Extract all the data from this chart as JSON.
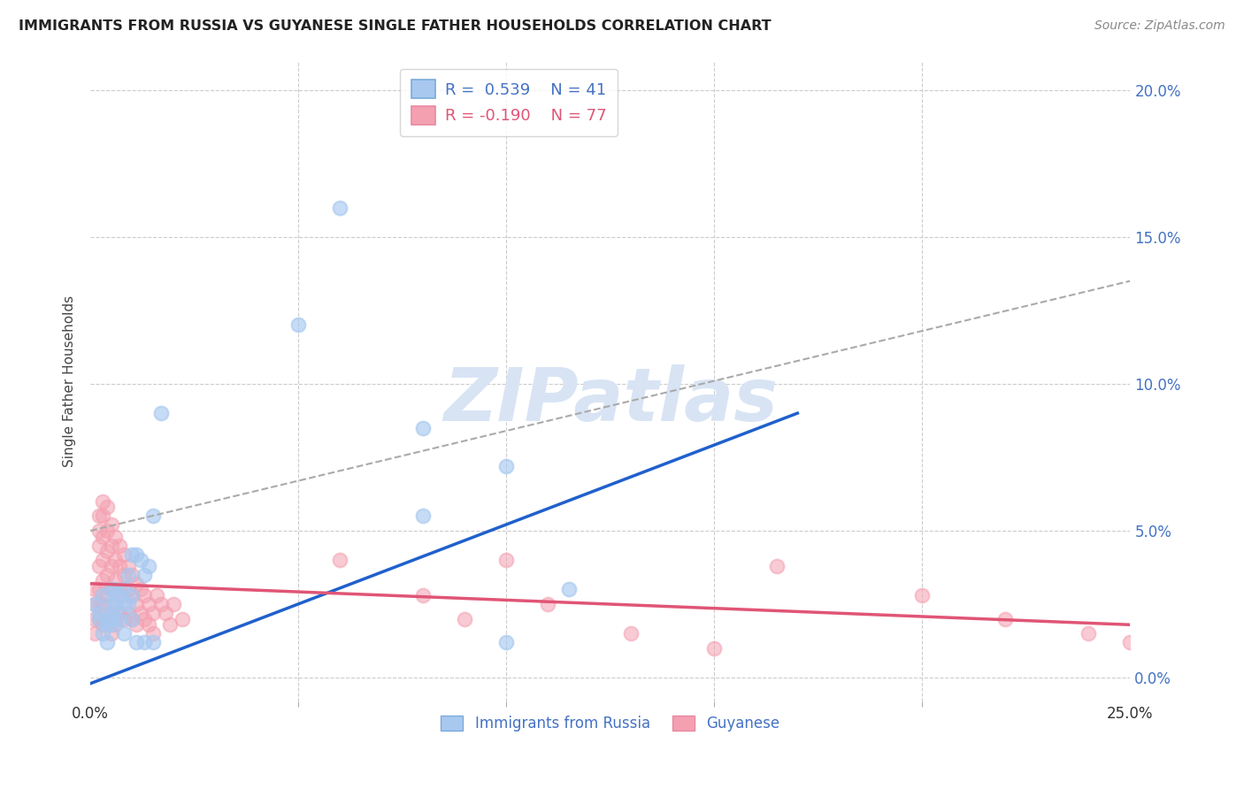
{
  "title": "IMMIGRANTS FROM RUSSIA VS GUYANESE SINGLE FATHER HOUSEHOLDS CORRELATION CHART",
  "source": "Source: ZipAtlas.com",
  "ylabel": "Single Father Households",
  "legend_blue_label": "Immigrants from Russia",
  "legend_pink_label": "Guyanese",
  "scatter_color_blue": "#A8C8F0",
  "scatter_color_pink": "#F4A0B0",
  "line_color_blue": "#2060CC",
  "line_color_pink": "#E05575",
  "line_color_gray": "#AAAAAA",
  "background_color": "#FFFFFF",
  "watermark_text": "ZIPatlas",
  "watermark_color": "#D8E4F4",
  "blue_points": [
    [
      0.001,
      0.025
    ],
    [
      0.002,
      0.02
    ],
    [
      0.002,
      0.022
    ],
    [
      0.003,
      0.028
    ],
    [
      0.003,
      0.015
    ],
    [
      0.004,
      0.018
    ],
    [
      0.004,
      0.02
    ],
    [
      0.004,
      0.012
    ],
    [
      0.005,
      0.022
    ],
    [
      0.005,
      0.018
    ],
    [
      0.005,
      0.025
    ],
    [
      0.005,
      0.03
    ],
    [
      0.006,
      0.02
    ],
    [
      0.006,
      0.025
    ],
    [
      0.006,
      0.03
    ],
    [
      0.007,
      0.028
    ],
    [
      0.007,
      0.02
    ],
    [
      0.008,
      0.03
    ],
    [
      0.008,
      0.025
    ],
    [
      0.008,
      0.015
    ],
    [
      0.009,
      0.035
    ],
    [
      0.009,
      0.025
    ],
    [
      0.01,
      0.042
    ],
    [
      0.01,
      0.028
    ],
    [
      0.01,
      0.02
    ],
    [
      0.011,
      0.042
    ],
    [
      0.011,
      0.012
    ],
    [
      0.012,
      0.04
    ],
    [
      0.013,
      0.012
    ],
    [
      0.013,
      0.035
    ],
    [
      0.014,
      0.038
    ],
    [
      0.015,
      0.055
    ],
    [
      0.015,
      0.012
    ],
    [
      0.017,
      0.09
    ],
    [
      0.05,
      0.12
    ],
    [
      0.06,
      0.16
    ],
    [
      0.08,
      0.085
    ],
    [
      0.08,
      0.055
    ],
    [
      0.1,
      0.072
    ],
    [
      0.1,
      0.012
    ],
    [
      0.115,
      0.03
    ]
  ],
  "pink_points": [
    [
      0.001,
      0.03
    ],
    [
      0.001,
      0.025
    ],
    [
      0.001,
      0.02
    ],
    [
      0.001,
      0.015
    ],
    [
      0.002,
      0.055
    ],
    [
      0.002,
      0.05
    ],
    [
      0.002,
      0.045
    ],
    [
      0.002,
      0.038
    ],
    [
      0.002,
      0.03
    ],
    [
      0.002,
      0.025
    ],
    [
      0.002,
      0.02
    ],
    [
      0.003,
      0.06
    ],
    [
      0.003,
      0.055
    ],
    [
      0.003,
      0.048
    ],
    [
      0.003,
      0.04
    ],
    [
      0.003,
      0.033
    ],
    [
      0.003,
      0.025
    ],
    [
      0.003,
      0.018
    ],
    [
      0.004,
      0.058
    ],
    [
      0.004,
      0.05
    ],
    [
      0.004,
      0.043
    ],
    [
      0.004,
      0.035
    ],
    [
      0.004,
      0.028
    ],
    [
      0.004,
      0.02
    ],
    [
      0.005,
      0.052
    ],
    [
      0.005,
      0.045
    ],
    [
      0.005,
      0.038
    ],
    [
      0.005,
      0.03
    ],
    [
      0.005,
      0.022
    ],
    [
      0.005,
      0.015
    ],
    [
      0.006,
      0.048
    ],
    [
      0.006,
      0.04
    ],
    [
      0.006,
      0.033
    ],
    [
      0.006,
      0.025
    ],
    [
      0.006,
      0.018
    ],
    [
      0.007,
      0.045
    ],
    [
      0.007,
      0.038
    ],
    [
      0.007,
      0.03
    ],
    [
      0.007,
      0.022
    ],
    [
      0.008,
      0.042
    ],
    [
      0.008,
      0.035
    ],
    [
      0.008,
      0.028
    ],
    [
      0.008,
      0.02
    ],
    [
      0.009,
      0.038
    ],
    [
      0.009,
      0.03
    ],
    [
      0.009,
      0.022
    ],
    [
      0.01,
      0.035
    ],
    [
      0.01,
      0.028
    ],
    [
      0.01,
      0.02
    ],
    [
      0.011,
      0.032
    ],
    [
      0.011,
      0.025
    ],
    [
      0.011,
      0.018
    ],
    [
      0.012,
      0.03
    ],
    [
      0.012,
      0.022
    ],
    [
      0.013,
      0.028
    ],
    [
      0.013,
      0.02
    ],
    [
      0.014,
      0.025
    ],
    [
      0.014,
      0.018
    ],
    [
      0.015,
      0.022
    ],
    [
      0.015,
      0.015
    ],
    [
      0.016,
      0.028
    ],
    [
      0.017,
      0.025
    ],
    [
      0.018,
      0.022
    ],
    [
      0.019,
      0.018
    ],
    [
      0.02,
      0.025
    ],
    [
      0.022,
      0.02
    ],
    [
      0.06,
      0.04
    ],
    [
      0.08,
      0.028
    ],
    [
      0.09,
      0.02
    ],
    [
      0.1,
      0.04
    ],
    [
      0.11,
      0.025
    ],
    [
      0.13,
      0.015
    ],
    [
      0.15,
      0.01
    ],
    [
      0.165,
      0.038
    ],
    [
      0.2,
      0.028
    ],
    [
      0.22,
      0.02
    ],
    [
      0.24,
      0.015
    ],
    [
      0.25,
      0.012
    ]
  ],
  "xlim": [
    0.0,
    0.25
  ],
  "ylim": [
    -0.008,
    0.21
  ],
  "xtick_positions": [
    0.0,
    0.25
  ],
  "xtick_labels": [
    "0.0%",
    "25.0%"
  ],
  "xtick_minor_positions": [
    0.05,
    0.1,
    0.15,
    0.2
  ],
  "ytick_positions": [
    0.0,
    0.05,
    0.1,
    0.15,
    0.2
  ],
  "ytick_labels_right": [
    "0.0%",
    "5.0%",
    "10.0%",
    "15.0%",
    "20.0%"
  ],
  "blue_line": {
    "x0": 0.0,
    "y0": -0.002,
    "x1": 0.17,
    "y1": 0.09
  },
  "pink_line": {
    "x0": 0.0,
    "y0": 0.032,
    "x1": 0.25,
    "y1": 0.018
  },
  "gray_dashed_line": {
    "x0": 0.0,
    "y0": 0.05,
    "x1": 0.25,
    "y1": 0.135
  }
}
